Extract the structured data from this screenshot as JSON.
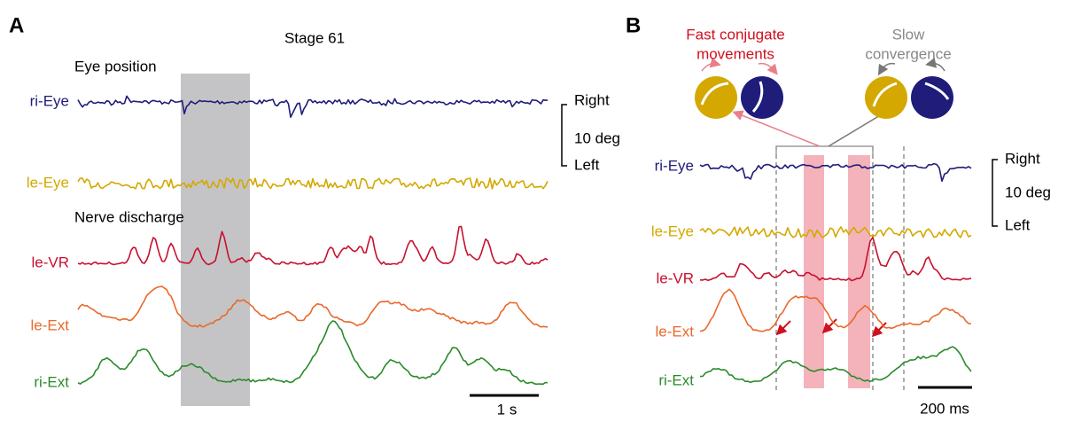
{
  "panel_a": {
    "label": "A",
    "title": "Stage 61",
    "section_eye": "Eye position",
    "section_nerve": "Nerve discharge",
    "traces": [
      "ri-Eye",
      "le-Eye",
      "le-VR",
      "le-Ext",
      "ri-Ext"
    ],
    "scale": {
      "top": "Right",
      "size": "10 deg",
      "bottom": "Left"
    },
    "time_scale": "1 s"
  },
  "panel_b": {
    "label": "B",
    "fast_line1": "Fast conjugate",
    "fast_line2": "movements",
    "slow_line1": "Slow",
    "slow_line2": "convergence",
    "traces": [
      "ri-Eye",
      "le-Eye",
      "le-VR",
      "le-Ext",
      "ri-Ext"
    ],
    "scale": {
      "top": "Right",
      "size": "10 deg",
      "bottom": "Left"
    },
    "time_scale": "200 ms"
  }
}
